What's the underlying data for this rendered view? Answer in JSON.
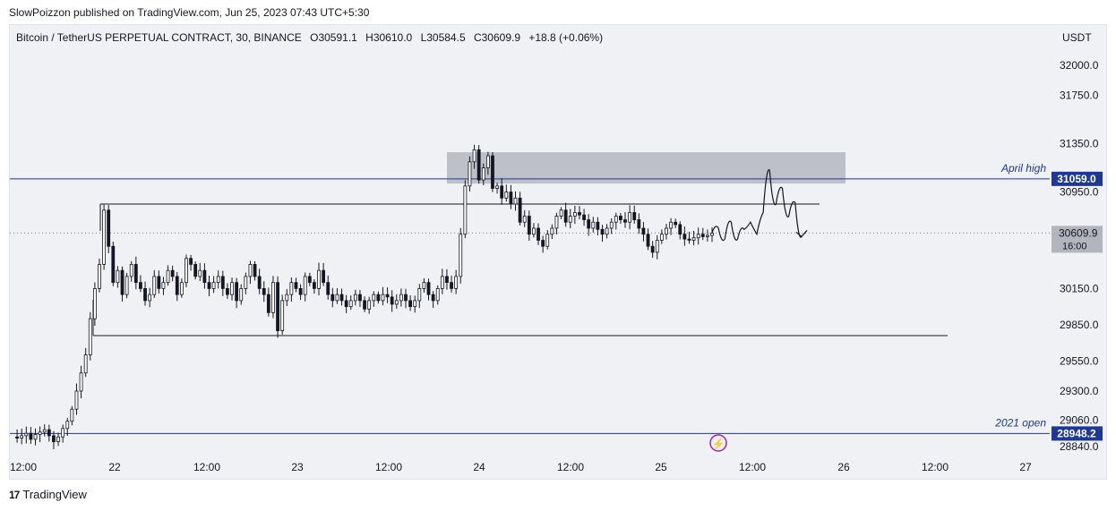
{
  "header": {
    "publisher": "SlowPoizzon published on TradingView.com, Jun 25, 2023 07:43 UTC+5:30",
    "symbol": "Bitcoin / TetherUS PERPETUAL CONTRACT, 30, BINANCE",
    "ohlc_o": "O30591.1",
    "ohlc_h": "H30610.0",
    "ohlc_l": "L30584.5",
    "ohlc_c": "C30609.9",
    "change": "+18.8 (+0.06%)",
    "currency": "USDT"
  },
  "footer": {
    "brand": "TradingView",
    "logo_icon": "tradingview-logo-icon"
  },
  "colors": {
    "background": "#f0f1f5",
    "candle": "#131722",
    "accent_blue": "#1e3799",
    "zone": "#9598a1",
    "up_red": "#f23645"
  },
  "chart_data": {
    "type": "candlestick",
    "yaxis": {
      "tick_labels": [
        "32000.0",
        "31750.0",
        "31350.0",
        "30950.0",
        "30150.0",
        "29850.0",
        "29550.0",
        "29300.0",
        "29060.0",
        "28840.0"
      ],
      "ticks": [
        32000,
        31750,
        31350,
        30950,
        30150,
        29850,
        29550,
        29300,
        29060,
        28840
      ]
    },
    "xaxis": {
      "tick_labels": [
        "12:00",
        "22",
        "12:00",
        "23",
        "12:00",
        "24",
        "12:00",
        "25",
        "12:00",
        "26",
        "12:00",
        "27"
      ]
    },
    "horizontal_lines": [
      {
        "label": "April high",
        "value": 31059.0,
        "badge": "31059.0"
      },
      {
        "label": "2021 open",
        "value": 28948.2,
        "badge": "28948.2"
      }
    ],
    "current_price": {
      "value": 30609.9,
      "badge": "30609.9",
      "countdown": "16:00"
    },
    "range_top": 30850,
    "range_bottom": 29760,
    "supply_zone": {
      "high": 31280,
      "low": 31020
    },
    "price_path": [
      28920,
      28910,
      28930,
      28950,
      28900,
      28940,
      28960,
      28980,
      28930,
      28880,
      28920,
      28990,
      29050,
      29150,
      29300,
      29450,
      29600,
      29900,
      30150,
      30350,
      30800,
      30500,
      30200,
      30300,
      30100,
      30250,
      30350,
      30200,
      30150,
      30050,
      30100,
      30250,
      30150,
      30200,
      30300,
      30250,
      30100,
      30200,
      30400,
      30350,
      30250,
      30300,
      30200,
      30150,
      30200,
      30250,
      30150,
      30100,
      30200,
      30050,
      30150,
      30250,
      30350,
      30250,
      30150,
      30100,
      29950,
      30200,
      29800,
      30050,
      30100,
      30200,
      30150,
      30100,
      30250,
      30200,
      30150,
      30300,
      30200,
      30100,
      30050,
      30100,
      30050,
      30000,
      30050,
      30100,
      30050,
      29980,
      30050,
      30100,
      30050,
      30100,
      30080,
      30020,
      30050,
      30100,
      30050,
      30000,
      30050,
      30150,
      30200,
      30100,
      30050,
      30150,
      30250,
      30200,
      30150,
      30250,
      30600,
      31000,
      31200,
      31300,
      31050,
      31150,
      31250,
      30980,
      31000,
      30900,
      30950,
      30850,
      30900,
      30700,
      30750,
      30600,
      30650,
      30550,
      30500,
      30600,
      30650,
      30750,
      30800,
      30700,
      30750,
      30780,
      30760,
      30720,
      30650,
      30700,
      30640,
      30600,
      30650,
      30700,
      30750,
      30720,
      30700,
      30780,
      30720,
      30650,
      30600,
      30500,
      30450,
      30550,
      30600,
      30650,
      30700,
      30680,
      30600,
      30560,
      30550,
      30570,
      30600,
      30580,
      30590,
      30610
    ],
    "projection_path": [
      30610,
      30650,
      30560,
      30700,
      30560,
      30640,
      30700,
      30600,
      30780,
      31130,
      30850,
      30980,
      30750,
      30860,
      30580
    ]
  }
}
